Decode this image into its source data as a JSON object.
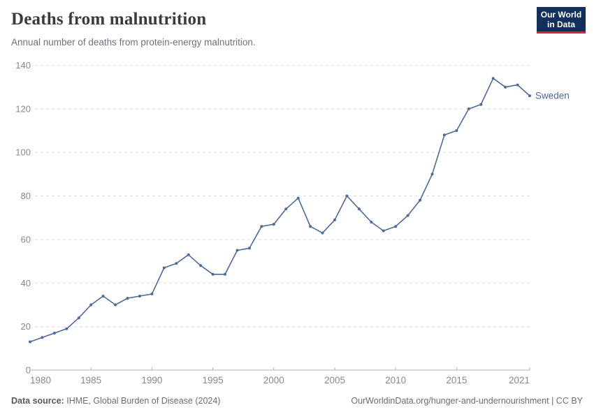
{
  "header": {
    "title": "Deaths from malnutrition",
    "subtitle": "Annual number of deaths from protein-energy malnutrition."
  },
  "logo": {
    "line1": "Our World",
    "line2": "in Data",
    "bg_color": "#12305b",
    "stripe_color": "#e0233c"
  },
  "footer": {
    "source_label": "Data source:",
    "source_value": "IHME, Global Burden of Disease (2024)",
    "right": "OurWorldinData.org/hunger-and-undernourishment | CC BY"
  },
  "chart_data": {
    "type": "line",
    "title": "Deaths from malnutrition",
    "subtitle": "Annual number of deaths from protein-energy malnutrition.",
    "x": [
      1980,
      1981,
      1982,
      1983,
      1984,
      1985,
      1986,
      1987,
      1988,
      1989,
      1990,
      1991,
      1992,
      1993,
      1994,
      1995,
      1996,
      1997,
      1998,
      1999,
      2000,
      2001,
      2002,
      2003,
      2004,
      2005,
      2006,
      2007,
      2008,
      2009,
      2010,
      2011,
      2012,
      2013,
      2014,
      2015,
      2016,
      2017,
      2018,
      2019,
      2020,
      2021
    ],
    "series": [
      {
        "name": "Sweden",
        "color": "#4C6A9C",
        "values": [
          13,
          15,
          17,
          19,
          24,
          30,
          34,
          30,
          33,
          34,
          35,
          47,
          49,
          53,
          48,
          44,
          44,
          55,
          56,
          66,
          67,
          74,
          79,
          66,
          63,
          69,
          80,
          74,
          68,
          64,
          66,
          71,
          78,
          90,
          108,
          110,
          120,
          122,
          134,
          130,
          131,
          126
        ]
      }
    ],
    "xlim": [
      1980,
      2021
    ],
    "ylim": [
      0,
      140
    ],
    "yticks": [
      0,
      20,
      40,
      60,
      80,
      100,
      120,
      140
    ],
    "xticks": [
      1980,
      1985,
      1990,
      1995,
      2000,
      2005,
      2010,
      2015,
      2021
    ],
    "grid": "horizontal-dashed",
    "legend": "end-of-line-label",
    "axis_color": "#b3b3b3",
    "grid_color": "#dcdcdc",
    "tick_label_color": "#898989"
  }
}
